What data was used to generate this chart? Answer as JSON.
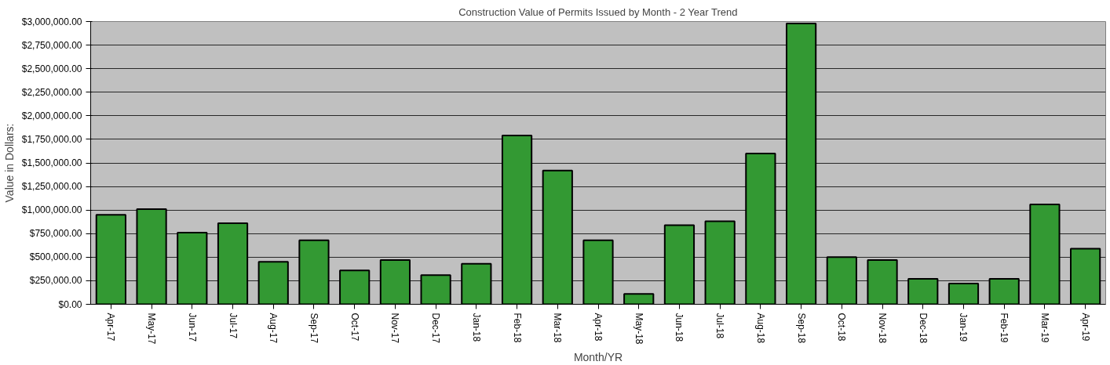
{
  "chart_data": {
    "type": "bar",
    "title": "Construction Value of Permits Issued by Month - 2 Year Trend",
    "xlabel": "Month/YR",
    "ylabel": "Value in Dollars:",
    "categories": [
      "Apr-17",
      "May-17",
      "Jun-17",
      "Jul-17",
      "Aug-17",
      "Sep-17",
      "Oct-17",
      "Nov-17",
      "Dec-17",
      "Jan-18",
      "Feb-18",
      "Mar-18",
      "Apr-18",
      "May-18",
      "Jun-18",
      "Jul-18",
      "Aug-18",
      "Sep-18",
      "Oct-18",
      "Nov-18",
      "Dec-18",
      "Jan-19",
      "Feb-19",
      "Mar-19",
      "Apr-19"
    ],
    "values": [
      950000,
      1010000,
      760000,
      860000,
      450000,
      680000,
      360000,
      470000,
      310000,
      430000,
      1790000,
      1420000,
      680000,
      110000,
      840000,
      880000,
      1600000,
      2980000,
      500000,
      470000,
      270000,
      220000,
      270000,
      1060000,
      590000
    ],
    "color": "#339933",
    "ylim": [
      0,
      3000000
    ],
    "yticks": [
      {
        "value": 0,
        "label": "$0.00"
      },
      {
        "value": 250000,
        "label": "$250,000.00"
      },
      {
        "value": 500000,
        "label": "$500,000.00"
      },
      {
        "value": 750000,
        "label": "$750,000.00"
      },
      {
        "value": 1000000,
        "label": "$1,000,000.00"
      },
      {
        "value": 1250000,
        "label": "$1,250,000.00"
      },
      {
        "value": 1500000,
        "label": "$1,500,000.00"
      },
      {
        "value": 1750000,
        "label": "$1,750,000.00"
      },
      {
        "value": 2000000,
        "label": "$2,000,000.00"
      },
      {
        "value": 2250000,
        "label": "$2,250,000.00"
      },
      {
        "value": 2500000,
        "label": "$2,500,000.00"
      },
      {
        "value": 2750000,
        "label": "$2,750,000.00"
      },
      {
        "value": 3000000,
        "label": "$3,000,000.00"
      }
    ],
    "grid": "y"
  }
}
